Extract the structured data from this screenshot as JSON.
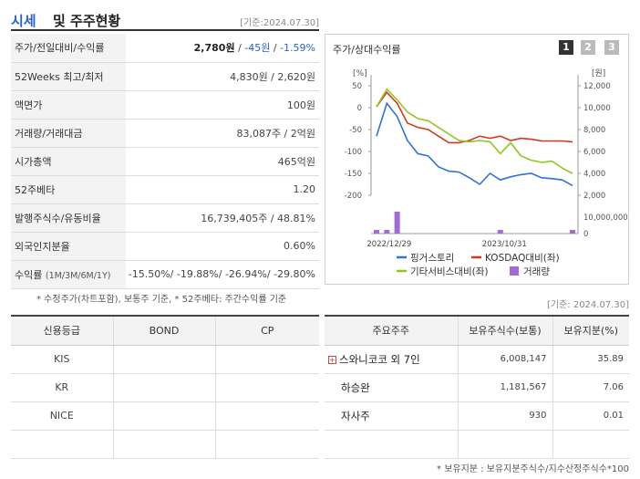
{
  "header": {
    "title_main": "시세",
    "title_sub": "및 주주현황",
    "base_date": "[기준:2024.07.30]"
  },
  "info": [
    {
      "label": "주가/전일대비/수익률",
      "price": "2,780원",
      "change": "-45원",
      "rate": "-1.59%"
    },
    {
      "label": "52Weeks 최고/최저",
      "value": "4,830원 / 2,620원"
    },
    {
      "label": "액면가",
      "value": "100원"
    },
    {
      "label": "거래량/거래대금",
      "value": "83,087주 / 2억원"
    },
    {
      "label": "시가총액",
      "value": "465억원"
    },
    {
      "label": "52주베타",
      "value": "1.20"
    },
    {
      "label": "발행주식수/유동비율",
      "value": "16,739,405주 / 48.81%"
    },
    {
      "label": "외국인지분율",
      "value": "0.60%"
    },
    {
      "label": "수익률",
      "label_small": "(1M/3M/6M/1Y)",
      "value": "-15.50%/ -19.88%/ -26.94%/ -29.80%"
    }
  ],
  "note": "* 수정주가(차트포함), 보통주 기준, * 52주베타: 주간수익률 기준",
  "chart": {
    "title": "주가/상대수익률",
    "period_buttons": [
      "1",
      "2",
      "3"
    ],
    "active_button": "1",
    "left_unit": "[%]",
    "right_unit": "[원]"
  },
  "chart_data": {
    "type": "line",
    "x_labels": [
      "2022/12/29",
      "2023/10/31"
    ],
    "ylim_left": [
      -200,
      50
    ],
    "y_ticks_left": [
      "50",
      "0",
      "-50",
      "-100",
      "-150",
      "-200"
    ],
    "ylim_right": [
      2000,
      12000
    ],
    "y_ticks_right": [
      "12,000",
      "10,000",
      "8,000",
      "6,000",
      "4,000",
      "2,000"
    ],
    "volume_ticks": [
      "10,000,000",
      "0"
    ],
    "series": [
      {
        "name": "핑거스토리",
        "color": "#2f72d6",
        "values": [
          -65,
          10,
          -20,
          -75,
          -105,
          -110,
          -135,
          -145,
          -147,
          -160,
          -175,
          -150,
          -165,
          -158,
          -153,
          -150,
          -160,
          -162,
          -165,
          -178
        ]
      },
      {
        "name": "KOSDAQ대비(좌)",
        "color": "#d2391f",
        "values": [
          2,
          35,
          10,
          -35,
          -45,
          -50,
          -65,
          -80,
          -80,
          -75,
          -65,
          -70,
          -65,
          -75,
          -70,
          -72,
          -76,
          -76,
          -76,
          -78
        ]
      },
      {
        "name": "기타서비스대비(좌)",
        "color": "#92c620",
        "values": [
          2,
          42,
          18,
          -10,
          -25,
          -30,
          -45,
          -60,
          -75,
          -78,
          -75,
          -78,
          -105,
          -80,
          -110,
          -120,
          -125,
          -122,
          -138,
          -150
        ]
      },
      {
        "name": "거래량",
        "color": "#a46ad6",
        "type": "bar",
        "values": [
          1,
          1,
          6,
          0,
          0,
          0,
          0,
          0,
          0,
          0,
          0,
          0,
          1,
          0,
          0,
          0,
          0,
          0,
          0,
          1
        ]
      }
    ]
  },
  "base_date2": "[기준: 2024.07.30]",
  "credit": {
    "headers": [
      "신용등급",
      "BOND",
      "CP"
    ],
    "rows": [
      [
        "KIS",
        "",
        ""
      ],
      [
        "KR",
        "",
        ""
      ],
      [
        "NICE",
        "",
        ""
      ],
      [
        "",
        "",
        ""
      ]
    ]
  },
  "share": {
    "headers": [
      "주요주주",
      "보유주식수(보통)",
      "보유지분(%)"
    ],
    "rows": [
      {
        "name": "스와니코코 외 7인",
        "shares": "6,008,147",
        "pct": "35.89",
        "expand": true
      },
      {
        "name": "하승완",
        "shares": "1,181,567",
        "pct": "7.06",
        "expand": false
      },
      {
        "name": "자사주",
        "shares": "930",
        "pct": "0.01",
        "expand": false
      },
      {
        "name": "",
        "shares": "",
        "pct": "",
        "expand": false
      }
    ]
  },
  "footnote": "* 보유지분 : 보유지분주식수/지수산정주식수*100"
}
